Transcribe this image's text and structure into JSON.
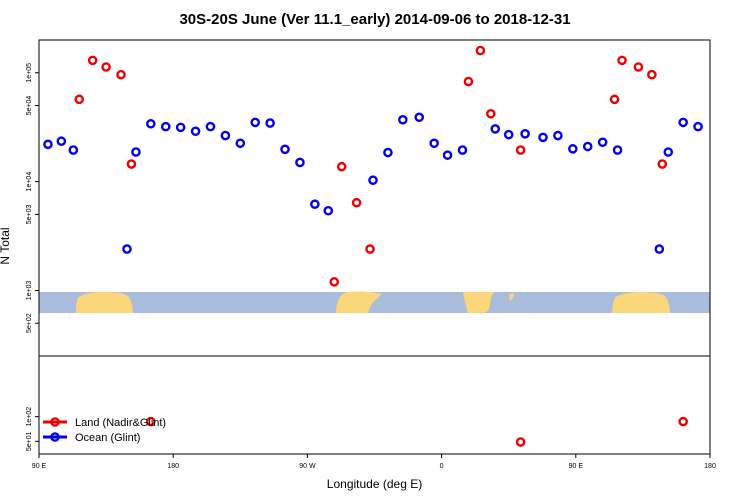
{
  "chart_data": {
    "type": "scatter",
    "title": "30S-20S June (Ver 11.1_early)   2014-09-06 to 2018-12-31",
    "xlabel": "Longitude (deg E)",
    "ylabel": "N Total",
    "x_ticks": [
      {
        "value": 90,
        "label": "90 E"
      },
      {
        "value": 180,
        "label": "180"
      },
      {
        "value": 270,
        "label": "90 W"
      },
      {
        "value": 360,
        "label": "0"
      },
      {
        "value": 450,
        "label": "90 E"
      },
      {
        "value": 540,
        "label": "180"
      }
    ],
    "xlim": [
      90,
      540
    ],
    "upper_panel": {
      "scale": "log",
      "ylim": [
        250,
        200000
      ],
      "y_ticks": [
        {
          "value": 500,
          "label": "5e+02"
        },
        {
          "value": 1000,
          "label": "1e+03"
        },
        {
          "value": 5000,
          "label": "5e+03"
        },
        {
          "value": 10000,
          "label": "1e+04"
        },
        {
          "value": 50000,
          "label": "5e+04"
        },
        {
          "value": 100000,
          "label": "1e+05"
        }
      ]
    },
    "lower_panel": {
      "scale": "log",
      "ylim": [
        35,
        550
      ],
      "y_ticks": [
        {
          "value": 50,
          "label": "5e+01"
        },
        {
          "value": 100,
          "label": "1e+02"
        }
      ]
    },
    "series": [
      {
        "name": "Land (Nadir&Glint)",
        "color": "#ee0000",
        "points": [
          {
            "x": 117,
            "y": 57000,
            "panel": "upper"
          },
          {
            "x": 126,
            "y": 130000,
            "panel": "upper"
          },
          {
            "x": 135,
            "y": 113000,
            "panel": "upper"
          },
          {
            "x": 145,
            "y": 96000,
            "panel": "upper"
          },
          {
            "x": 152,
            "y": 14500,
            "panel": "upper"
          },
          {
            "x": 165,
            "y": 87,
            "panel": "lower"
          },
          {
            "x": 288,
            "y": 1200,
            "panel": "upper"
          },
          {
            "x": 293,
            "y": 13700,
            "panel": "upper"
          },
          {
            "x": 303,
            "y": 6400,
            "panel": "upper"
          },
          {
            "x": 312,
            "y": 2400,
            "panel": "upper"
          },
          {
            "x": 378,
            "y": 83000,
            "panel": "upper"
          },
          {
            "x": 386,
            "y": 160000,
            "panel": "upper"
          },
          {
            "x": 393,
            "y": 42000,
            "panel": "upper"
          },
          {
            "x": 413,
            "y": 19500,
            "panel": "upper"
          },
          {
            "x": 413,
            "y": 49,
            "panel": "lower"
          },
          {
            "x": 476,
            "y": 57000,
            "panel": "upper"
          },
          {
            "x": 481,
            "y": 130000,
            "panel": "upper"
          },
          {
            "x": 492,
            "y": 113000,
            "panel": "upper"
          },
          {
            "x": 501,
            "y": 96000,
            "panel": "upper"
          },
          {
            "x": 508,
            "y": 14500,
            "panel": "upper"
          },
          {
            "x": 522,
            "y": 87,
            "panel": "lower"
          }
        ]
      },
      {
        "name": "Ocean (Glint)",
        "color": "#0000ee",
        "points": [
          {
            "x": 96,
            "y": 22000,
            "panel": "upper"
          },
          {
            "x": 105,
            "y": 23500,
            "panel": "upper"
          },
          {
            "x": 113,
            "y": 19500,
            "panel": "upper"
          },
          {
            "x": 149,
            "y": 2400,
            "panel": "upper"
          },
          {
            "x": 155,
            "y": 18700,
            "panel": "upper"
          },
          {
            "x": 165,
            "y": 34000,
            "panel": "upper"
          },
          {
            "x": 175,
            "y": 32000,
            "panel": "upper"
          },
          {
            "x": 185,
            "y": 31500,
            "panel": "upper"
          },
          {
            "x": 195,
            "y": 29000,
            "panel": "upper"
          },
          {
            "x": 205,
            "y": 32000,
            "panel": "upper"
          },
          {
            "x": 215,
            "y": 26500,
            "panel": "upper"
          },
          {
            "x": 225,
            "y": 22500,
            "panel": "upper"
          },
          {
            "x": 235,
            "y": 35000,
            "panel": "upper"
          },
          {
            "x": 245,
            "y": 34500,
            "panel": "upper"
          },
          {
            "x": 255,
            "y": 19800,
            "panel": "upper"
          },
          {
            "x": 265,
            "y": 15000,
            "panel": "upper"
          },
          {
            "x": 275,
            "y": 6200,
            "panel": "upper"
          },
          {
            "x": 284,
            "y": 5400,
            "panel": "upper"
          },
          {
            "x": 314,
            "y": 10300,
            "panel": "upper"
          },
          {
            "x": 324,
            "y": 18500,
            "panel": "upper"
          },
          {
            "x": 334,
            "y": 37000,
            "panel": "upper"
          },
          {
            "x": 345,
            "y": 39000,
            "panel": "upper"
          },
          {
            "x": 355,
            "y": 22500,
            "panel": "upper"
          },
          {
            "x": 364,
            "y": 17500,
            "panel": "upper"
          },
          {
            "x": 374,
            "y": 19500,
            "panel": "upper"
          },
          {
            "x": 396,
            "y": 30500,
            "panel": "upper"
          },
          {
            "x": 405,
            "y": 27000,
            "panel": "upper"
          },
          {
            "x": 416,
            "y": 27500,
            "panel": "upper"
          },
          {
            "x": 428,
            "y": 25500,
            "panel": "upper"
          },
          {
            "x": 438,
            "y": 26500,
            "panel": "upper"
          },
          {
            "x": 448,
            "y": 20000,
            "panel": "upper"
          },
          {
            "x": 458,
            "y": 21000,
            "panel": "upper"
          },
          {
            "x": 468,
            "y": 23000,
            "panel": "upper"
          },
          {
            "x": 478,
            "y": 19500,
            "panel": "upper"
          },
          {
            "x": 506,
            "y": 2400,
            "panel": "upper"
          },
          {
            "x": 512,
            "y": 18700,
            "panel": "upper"
          },
          {
            "x": 522,
            "y": 35000,
            "panel": "upper"
          },
          {
            "x": 532,
            "y": 32000,
            "panel": "upper"
          }
        ]
      }
    ],
    "legend_position": "bottom-left",
    "map_strip_colors": {
      "ocean": "#a9bcdc",
      "land": "#fbd67a"
    },
    "grid": false
  }
}
